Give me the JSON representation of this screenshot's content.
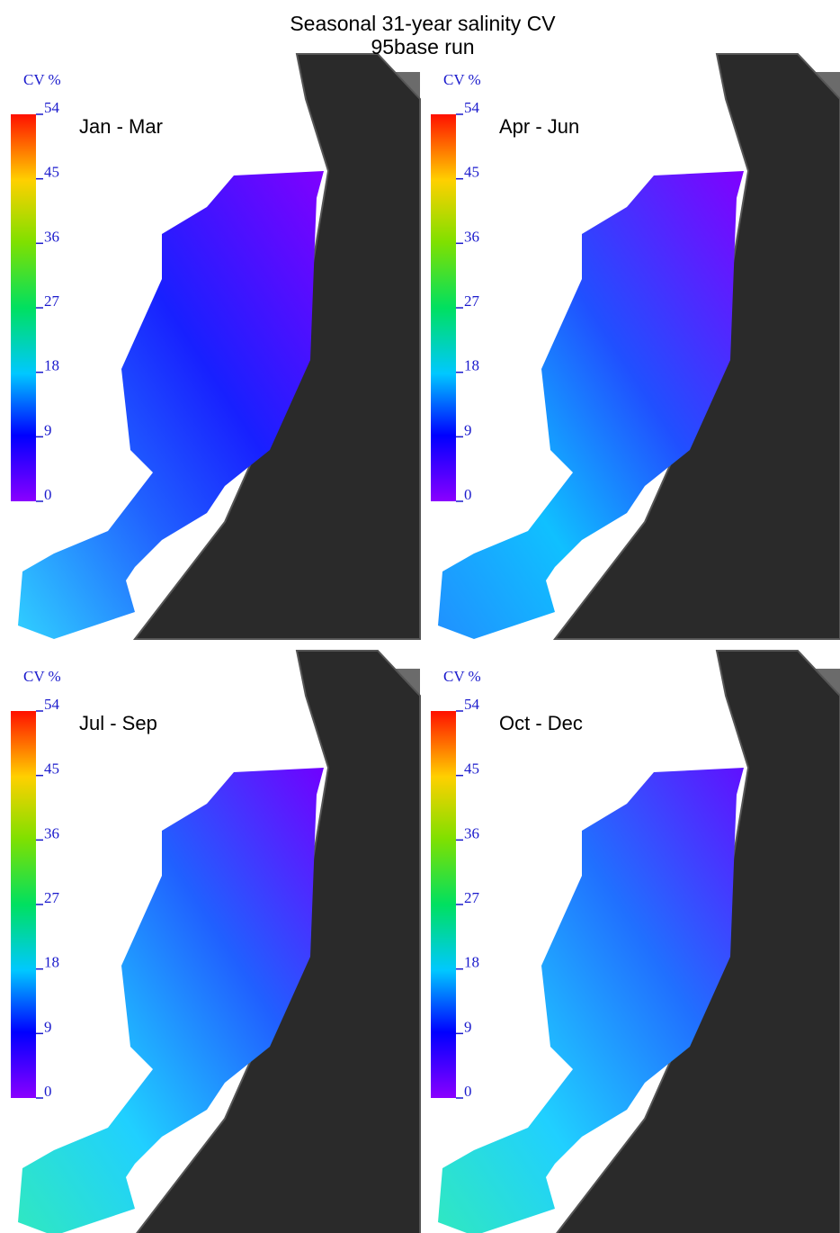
{
  "title": "Seasonal 31-year salinity CV",
  "subtitle": "95base run",
  "panels": [
    {
      "label": "Jan - Mar",
      "colorbar": {
        "title": "CV %",
        "range": [
          0,
          54
        ],
        "ticks": [
          0,
          9,
          18,
          27,
          36,
          45,
          54
        ]
      }
    },
    {
      "label": "Apr - Jun",
      "colorbar": {
        "title": "CV %",
        "range": [
          0,
          54
        ],
        "ticks": [
          0,
          9,
          18,
          27,
          36,
          45,
          54
        ]
      }
    },
    {
      "label": "Jul - Sep",
      "colorbar": {
        "title": "CV %",
        "range": [
          0,
          54
        ],
        "ticks": [
          0,
          9,
          18,
          27,
          36,
          45,
          54
        ]
      }
    },
    {
      "label": "Oct - Dec",
      "colorbar": {
        "title": "CV %",
        "range": [
          0,
          54
        ],
        "ticks": [
          0,
          9,
          18,
          27,
          36,
          45,
          54
        ]
      }
    }
  ]
}
